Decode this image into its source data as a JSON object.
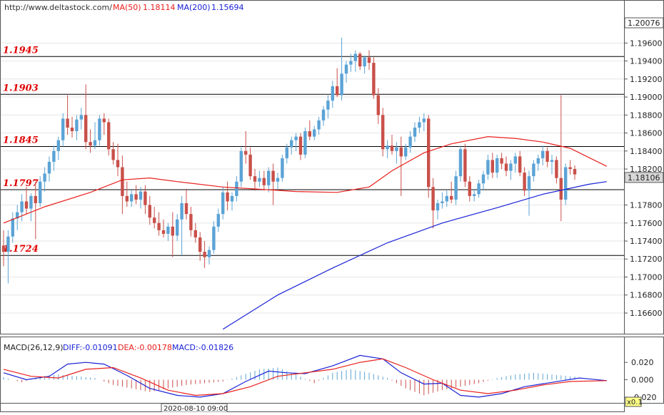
{
  "header": {
    "site": "http://www.deltastock.com/",
    "ma50_label": "MA(50)",
    "ma50_value": "1.18114",
    "ma200_label": "MA(200)",
    "ma200_value": "1.15694"
  },
  "macd_header": {
    "label": "MACD(26,12,9)",
    "diff": "DIFF:-0.01091",
    "dea": "DEA:-0.00178",
    "macd": "MACD:-0.01826"
  },
  "top_axis_value": "1.20076",
  "last_price": "1.18106",
  "date_label": "2020-08-10 09:00",
  "zoom_label": "x0.1",
  "colors": {
    "bull": "#5ba3d6",
    "bear": "#c9504a",
    "ma50": "#e8201c",
    "ma200": "#1a22d6",
    "level_text": "#e00000",
    "macd_bar_pos": "#5ba3d6",
    "macd_bar_neg": "#c9504a"
  },
  "chart_data": {
    "type": "candlestick",
    "y_axis_ticks": [
      "1.19600",
      "1.19400",
      "1.19200",
      "1.19000",
      "1.18800",
      "1.18600",
      "1.18400",
      "1.18200",
      "1.17800",
      "1.17600",
      "1.17400",
      "1.17200",
      "1.17000",
      "1.16800",
      "1.16600"
    ],
    "ylim": [
      1.1637,
      1.2007
    ],
    "levels": [
      {
        "label": "1.1945",
        "value": 1.1945
      },
      {
        "label": "1.1903",
        "value": 1.1903
      },
      {
        "label": "1.1845",
        "value": 1.1845
      },
      {
        "label": "1.1797",
        "value": 1.1797
      },
      {
        "label": "1.1724",
        "value": 1.1724
      }
    ],
    "candles": [
      [
        1.1735,
        1.1752,
        1.1712,
        1.1728
      ],
      [
        1.1728,
        1.1752,
        1.1693,
        1.1745
      ],
      [
        1.1745,
        1.1772,
        1.1738,
        1.1765
      ],
      [
        1.1765,
        1.178,
        1.1752,
        1.1772
      ],
      [
        1.1772,
        1.1792,
        1.1762,
        1.1784
      ],
      [
        1.1784,
        1.18,
        1.177,
        1.1776
      ],
      [
        1.1776,
        1.1793,
        1.1762,
        1.179
      ],
      [
        1.179,
        1.1806,
        1.1742,
        1.1782
      ],
      [
        1.1782,
        1.1812,
        1.1778,
        1.1806
      ],
      [
        1.1806,
        1.1822,
        1.1795,
        1.1815
      ],
      [
        1.1815,
        1.1834,
        1.1806,
        1.1828
      ],
      [
        1.1828,
        1.1846,
        1.1818,
        1.184
      ],
      [
        1.184,
        1.1856,
        1.183,
        1.1852
      ],
      [
        1.1852,
        1.1882,
        1.1845,
        1.1876
      ],
      [
        1.1876,
        1.1902,
        1.1858,
        1.1866
      ],
      [
        1.1866,
        1.1878,
        1.1855,
        1.1862
      ],
      [
        1.1862,
        1.188,
        1.1852,
        1.1875
      ],
      [
        1.1875,
        1.1888,
        1.1864,
        1.188
      ],
      [
        1.188,
        1.1914,
        1.1842,
        1.185
      ],
      [
        1.185,
        1.1864,
        1.1838,
        1.1846
      ],
      [
        1.1846,
        1.1872,
        1.1842,
        1.1852
      ],
      [
        1.1852,
        1.188,
        1.1846,
        1.1876
      ],
      [
        1.1876,
        1.1882,
        1.1858,
        1.1872
      ],
      [
        1.1872,
        1.1876,
        1.1835,
        1.1842
      ],
      [
        1.1842,
        1.185,
        1.1825,
        1.183
      ],
      [
        1.183,
        1.1848,
        1.1812,
        1.1822
      ],
      [
        1.1822,
        1.1835,
        1.177,
        1.179
      ],
      [
        1.179,
        1.1806,
        1.1778,
        1.1784
      ],
      [
        1.1784,
        1.1796,
        1.1778,
        1.1792
      ],
      [
        1.1792,
        1.1802,
        1.1781,
        1.1786
      ],
      [
        1.1786,
        1.18,
        1.1776,
        1.1795
      ],
      [
        1.1795,
        1.1802,
        1.177,
        1.178
      ],
      [
        1.178,
        1.179,
        1.1758,
        1.1766
      ],
      [
        1.1766,
        1.1778,
        1.1754,
        1.176
      ],
      [
        1.176,
        1.1772,
        1.1746,
        1.1752
      ],
      [
        1.1752,
        1.1764,
        1.1744,
        1.1748
      ],
      [
        1.1748,
        1.176,
        1.174,
        1.1756
      ],
      [
        1.1756,
        1.1772,
        1.1722,
        1.1746
      ],
      [
        1.1746,
        1.177,
        1.174,
        1.1764
      ],
      [
        1.1764,
        1.179,
        1.1724,
        1.1782
      ],
      [
        1.1782,
        1.1798,
        1.1764,
        1.177
      ],
      [
        1.177,
        1.1778,
        1.1745,
        1.1752
      ],
      [
        1.1752,
        1.176,
        1.1738,
        1.1744
      ],
      [
        1.1744,
        1.175,
        1.1718,
        1.1728
      ],
      [
        1.1728,
        1.174,
        1.171,
        1.1722
      ],
      [
        1.1722,
        1.1734,
        1.1714,
        1.173
      ],
      [
        1.173,
        1.1762,
        1.1726,
        1.1756
      ],
      [
        1.1756,
        1.1776,
        1.175,
        1.177
      ],
      [
        1.177,
        1.18,
        1.1764,
        1.1794
      ],
      [
        1.1794,
        1.1806,
        1.1774,
        1.1784
      ],
      [
        1.1784,
        1.1794,
        1.1774,
        1.179
      ],
      [
        1.179,
        1.1812,
        1.1784,
        1.1806
      ],
      [
        1.1806,
        1.1844,
        1.18,
        1.184
      ],
      [
        1.184,
        1.1862,
        1.1826,
        1.1836
      ],
      [
        1.1836,
        1.1844,
        1.1808,
        1.1812
      ],
      [
        1.1812,
        1.182,
        1.1796,
        1.1806
      ],
      [
        1.1806,
        1.1818,
        1.18,
        1.181
      ],
      [
        1.181,
        1.1818,
        1.1796,
        1.1802
      ],
      [
        1.1802,
        1.1822,
        1.1794,
        1.1818
      ],
      [
        1.1818,
        1.1826,
        1.178,
        1.1806
      ],
      [
        1.1806,
        1.1816,
        1.1796,
        1.181
      ],
      [
        1.181,
        1.1836,
        1.1806,
        1.1832
      ],
      [
        1.1832,
        1.1848,
        1.1826,
        1.1844
      ],
      [
        1.1844,
        1.1856,
        1.1836,
        1.1852
      ],
      [
        1.1852,
        1.186,
        1.184,
        1.1856
      ],
      [
        1.1856,
        1.186,
        1.183,
        1.1836
      ],
      [
        1.1836,
        1.1866,
        1.1832,
        1.1862
      ],
      [
        1.1862,
        1.1874,
        1.1852,
        1.1856
      ],
      [
        1.1856,
        1.1868,
        1.1852,
        1.1864
      ],
      [
        1.1864,
        1.1878,
        1.1858,
        1.1874
      ],
      [
        1.1874,
        1.189,
        1.1868,
        1.1886
      ],
      [
        1.1886,
        1.1902,
        1.1876,
        1.1896
      ],
      [
        1.1896,
        1.1918,
        1.1888,
        1.1912
      ],
      [
        1.1912,
        1.1932,
        1.19,
        1.1902
      ],
      [
        1.1902,
        1.1966,
        1.1896,
        1.1926
      ],
      [
        1.1926,
        1.194,
        1.1916,
        1.1936
      ],
      [
        1.1936,
        1.1948,
        1.1928,
        1.194
      ],
      [
        1.194,
        1.1952,
        1.1928,
        1.1948
      ],
      [
        1.1948,
        1.195,
        1.193,
        1.1934
      ],
      [
        1.1934,
        1.1946,
        1.1926,
        1.1944
      ],
      [
        1.1944,
        1.1952,
        1.193,
        1.1938
      ],
      [
        1.1938,
        1.1944,
        1.1898,
        1.1902
      ],
      [
        1.1902,
        1.191,
        1.187,
        1.188
      ],
      [
        1.188,
        1.1888,
        1.1834,
        1.1842
      ],
      [
        1.1842,
        1.1852,
        1.1832,
        1.1846
      ],
      [
        1.1846,
        1.1858,
        1.1836,
        1.184
      ],
      [
        1.184,
        1.185,
        1.1826,
        1.1844
      ],
      [
        1.1844,
        1.1856,
        1.179,
        1.1834
      ],
      [
        1.1834,
        1.1848,
        1.183,
        1.1844
      ],
      [
        1.1844,
        1.1862,
        1.1838,
        1.1856
      ],
      [
        1.1856,
        1.1872,
        1.185,
        1.1866
      ],
      [
        1.1866,
        1.1878,
        1.186,
        1.1872
      ],
      [
        1.1872,
        1.1882,
        1.1862,
        1.1876
      ],
      [
        1.1876,
        1.188,
        1.1788,
        1.18
      ],
      [
        1.18,
        1.181,
        1.1754,
        1.1774
      ],
      [
        1.1774,
        1.1786,
        1.1764,
        1.1782
      ],
      [
        1.1782,
        1.1794,
        1.1776,
        1.1784
      ],
      [
        1.1784,
        1.1796,
        1.1778,
        1.179
      ],
      [
        1.179,
        1.1806,
        1.1782,
        1.1786
      ],
      [
        1.1786,
        1.1818,
        1.178,
        1.1812
      ],
      [
        1.1812,
        1.1846,
        1.1806,
        1.1842
      ],
      [
        1.1842,
        1.1848,
        1.18,
        1.1806
      ],
      [
        1.1806,
        1.1812,
        1.1784,
        1.179
      ],
      [
        1.179,
        1.1798,
        1.1784,
        1.1792
      ],
      [
        1.1792,
        1.1808,
        1.1788,
        1.1804
      ],
      [
        1.1804,
        1.1818,
        1.1796,
        1.1814
      ],
      [
        1.1814,
        1.1836,
        1.1808,
        1.183
      ],
      [
        1.183,
        1.1838,
        1.181,
        1.1816
      ],
      [
        1.1816,
        1.1836,
        1.181,
        1.1832
      ],
      [
        1.1832,
        1.1838,
        1.182,
        1.1826
      ],
      [
        1.1826,
        1.1834,
        1.1812,
        1.1818
      ],
      [
        1.1818,
        1.183,
        1.1808,
        1.1826
      ],
      [
        1.1826,
        1.1838,
        1.1816,
        1.1834
      ],
      [
        1.1834,
        1.184,
        1.1812,
        1.1816
      ],
      [
        1.1816,
        1.1822,
        1.179,
        1.1796
      ],
      [
        1.1796,
        1.1818,
        1.1768,
        1.1812
      ],
      [
        1.1812,
        1.183,
        1.1806,
        1.1826
      ],
      [
        1.1826,
        1.1836,
        1.1818,
        1.1832
      ],
      [
        1.1832,
        1.1846,
        1.1824,
        1.184
      ],
      [
        1.184,
        1.1844,
        1.1822,
        1.1828
      ],
      [
        1.1828,
        1.1836,
        1.1814,
        1.183
      ],
      [
        1.183,
        1.1834,
        1.1804,
        1.181
      ],
      [
        1.181,
        1.1902,
        1.1762,
        1.1786
      ],
      [
        1.1786,
        1.1826,
        1.178,
        1.1822
      ],
      [
        1.1822,
        1.183,
        1.1814,
        1.182
      ],
      [
        1.182,
        1.1824,
        1.1808,
        1.1814
      ]
    ],
    "ma50": [
      [
        0,
        1.176
      ],
      [
        9,
        1.1778
      ],
      [
        19,
        1.1794
      ],
      [
        26,
        1.1808
      ],
      [
        32,
        1.181
      ],
      [
        38,
        1.1806
      ],
      [
        48,
        1.18
      ],
      [
        58,
        1.1797
      ],
      [
        64,
        1.1795
      ],
      [
        73,
        1.1794
      ],
      [
        80,
        1.18
      ],
      [
        85,
        1.1818
      ],
      [
        92,
        1.1838
      ],
      [
        98,
        1.1848
      ],
      [
        106,
        1.1856
      ],
      [
        112,
        1.1854
      ],
      [
        118,
        1.185
      ],
      [
        124,
        1.1843
      ],
      [
        130,
        1.1828
      ],
      [
        132,
        1.1823
      ]
    ],
    "ma200": [
      [
        48,
        1.1642
      ],
      [
        60,
        1.168
      ],
      [
        72,
        1.171
      ],
      [
        84,
        1.1738
      ],
      [
        96,
        1.176
      ],
      [
        108,
        1.1777
      ],
      [
        118,
        1.1792
      ],
      [
        128,
        1.1803
      ],
      [
        132,
        1.1806
      ]
    ],
    "macd_axis_ticks": [
      "0.020",
      "0.000",
      "-0.020"
    ],
    "macd_ylim": [
      -0.025,
      0.03
    ],
    "macd_diff": [
      [
        0,
        0.008
      ],
      [
        5,
        0.0
      ],
      [
        10,
        0.004
      ],
      [
        14,
        0.018
      ],
      [
        18,
        0.02
      ],
      [
        22,
        0.018
      ],
      [
        27,
        0.005
      ],
      [
        32,
        -0.01
      ],
      [
        38,
        -0.018
      ],
      [
        43,
        -0.02
      ],
      [
        48,
        -0.016
      ],
      [
        53,
        -0.002
      ],
      [
        58,
        0.01
      ],
      [
        62,
        0.008
      ],
      [
        66,
        0.007
      ],
      [
        72,
        0.016
      ],
      [
        78,
        0.028
      ],
      [
        83,
        0.024
      ],
      [
        87,
        0.008
      ],
      [
        92,
        -0.005
      ],
      [
        96,
        -0.004
      ],
      [
        100,
        -0.018
      ],
      [
        104,
        -0.02
      ],
      [
        109,
        -0.016
      ],
      [
        114,
        -0.008
      ],
      [
        120,
        -0.003
      ],
      [
        126,
        0.002
      ],
      [
        128,
        0.001
      ],
      [
        132,
        -0.001
      ]
    ],
    "macd_dea": [
      [
        0,
        0.012
      ],
      [
        6,
        0.004
      ],
      [
        12,
        0.002
      ],
      [
        18,
        0.012
      ],
      [
        24,
        0.014
      ],
      [
        30,
        0.002
      ],
      [
        36,
        -0.012
      ],
      [
        42,
        -0.018
      ],
      [
        48,
        -0.016
      ],
      [
        54,
        -0.008
      ],
      [
        60,
        0.004
      ],
      [
        66,
        0.008
      ],
      [
        72,
        0.012
      ],
      [
        78,
        0.02
      ],
      [
        83,
        0.024
      ],
      [
        88,
        0.014
      ],
      [
        94,
        0.0
      ],
      [
        100,
        -0.012
      ],
      [
        106,
        -0.016
      ],
      [
        112,
        -0.012
      ],
      [
        118,
        -0.006
      ],
      [
        124,
        -0.002
      ],
      [
        132,
        -0.001
      ]
    ],
    "macd_bars": [
      [
        0,
        0.003
      ],
      [
        4,
        -0.003
      ],
      [
        8,
        0.004
      ],
      [
        12,
        0.006
      ],
      [
        16,
        0.004
      ],
      [
        20,
        0.002
      ],
      [
        24,
        -0.006
      ],
      [
        28,
        -0.01
      ],
      [
        32,
        -0.014
      ],
      [
        36,
        -0.01
      ],
      [
        40,
        -0.006
      ],
      [
        44,
        -0.004
      ],
      [
        48,
        -0.002
      ],
      [
        52,
        0.005
      ],
      [
        56,
        0.012
      ],
      [
        60,
        0.014
      ],
      [
        64,
        0.006
      ],
      [
        68,
        -0.004
      ],
      [
        72,
        0.008
      ],
      [
        76,
        0.012
      ],
      [
        80,
        0.008
      ],
      [
        84,
        0.002
      ],
      [
        88,
        -0.01
      ],
      [
        92,
        -0.018
      ],
      [
        96,
        -0.012
      ],
      [
        100,
        -0.008
      ],
      [
        104,
        -0.004
      ],
      [
        108,
        0.002
      ],
      [
        112,
        0.006
      ],
      [
        116,
        0.008
      ],
      [
        120,
        0.006
      ],
      [
        124,
        0.004
      ],
      [
        128,
        0.002
      ],
      [
        131,
        0.001
      ]
    ]
  }
}
